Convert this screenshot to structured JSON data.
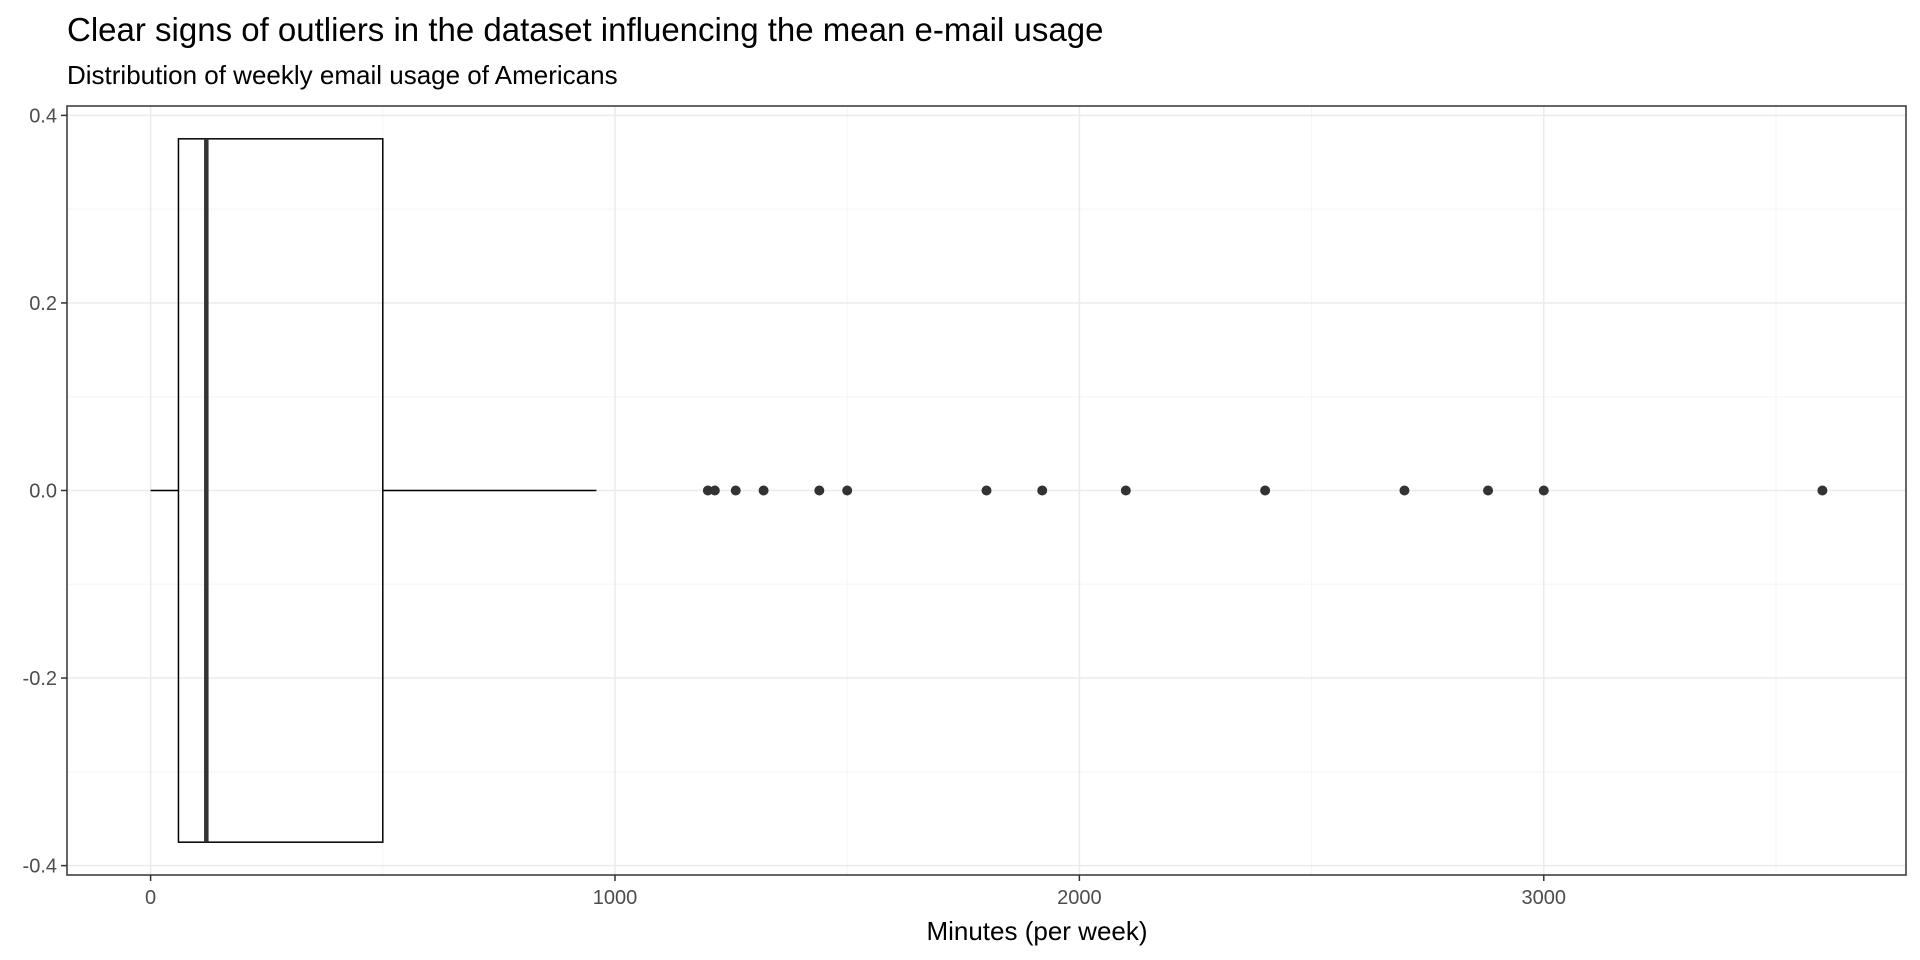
{
  "chart_data": {
    "type": "boxplot",
    "title": "Clear signs of outliers in the dataset influencing the mean e-mail usage",
    "subtitle": "Distribution of weekly email usage of Americans",
    "xlabel": "Minutes (per week)",
    "ylabel": "",
    "xlim": [
      -180,
      3780
    ],
    "ylim": [
      -0.41,
      0.41
    ],
    "x_ticks": [
      0,
      1000,
      2000,
      3000
    ],
    "x_tick_labels": [
      "0",
      "1000",
      "2000",
      "3000"
    ],
    "x_minor_ticks": [
      500,
      1500,
      2500,
      3500
    ],
    "y_ticks": [
      -0.4,
      -0.2,
      0.0,
      0.2,
      0.4
    ],
    "y_tick_labels": [
      "-0.4",
      "-0.2",
      "0.0",
      "0.2",
      "0.4"
    ],
    "y_minor_ticks": [
      -0.3,
      -0.1,
      0.1,
      0.3
    ],
    "grid": true,
    "box": {
      "min": 0,
      "q1": 60,
      "median": 120,
      "q3": 500,
      "whisker_high": 960,
      "center_y": 0,
      "y_low": -0.375,
      "y_high": 0.375
    },
    "outliers": [
      1200,
      1215,
      1260,
      1320,
      1440,
      1500,
      1800,
      1920,
      2100,
      2400,
      2700,
      2880,
      3000,
      3600
    ],
    "colors": {
      "background": "#ffffff",
      "grid_major": "#ebebeb",
      "grid_minor": "#f5f5f5",
      "panel_border": "#333333",
      "box_line": "#000000",
      "median_line": "#333333",
      "outlier": "#333333",
      "tick_label": "#4d4d4d"
    }
  }
}
